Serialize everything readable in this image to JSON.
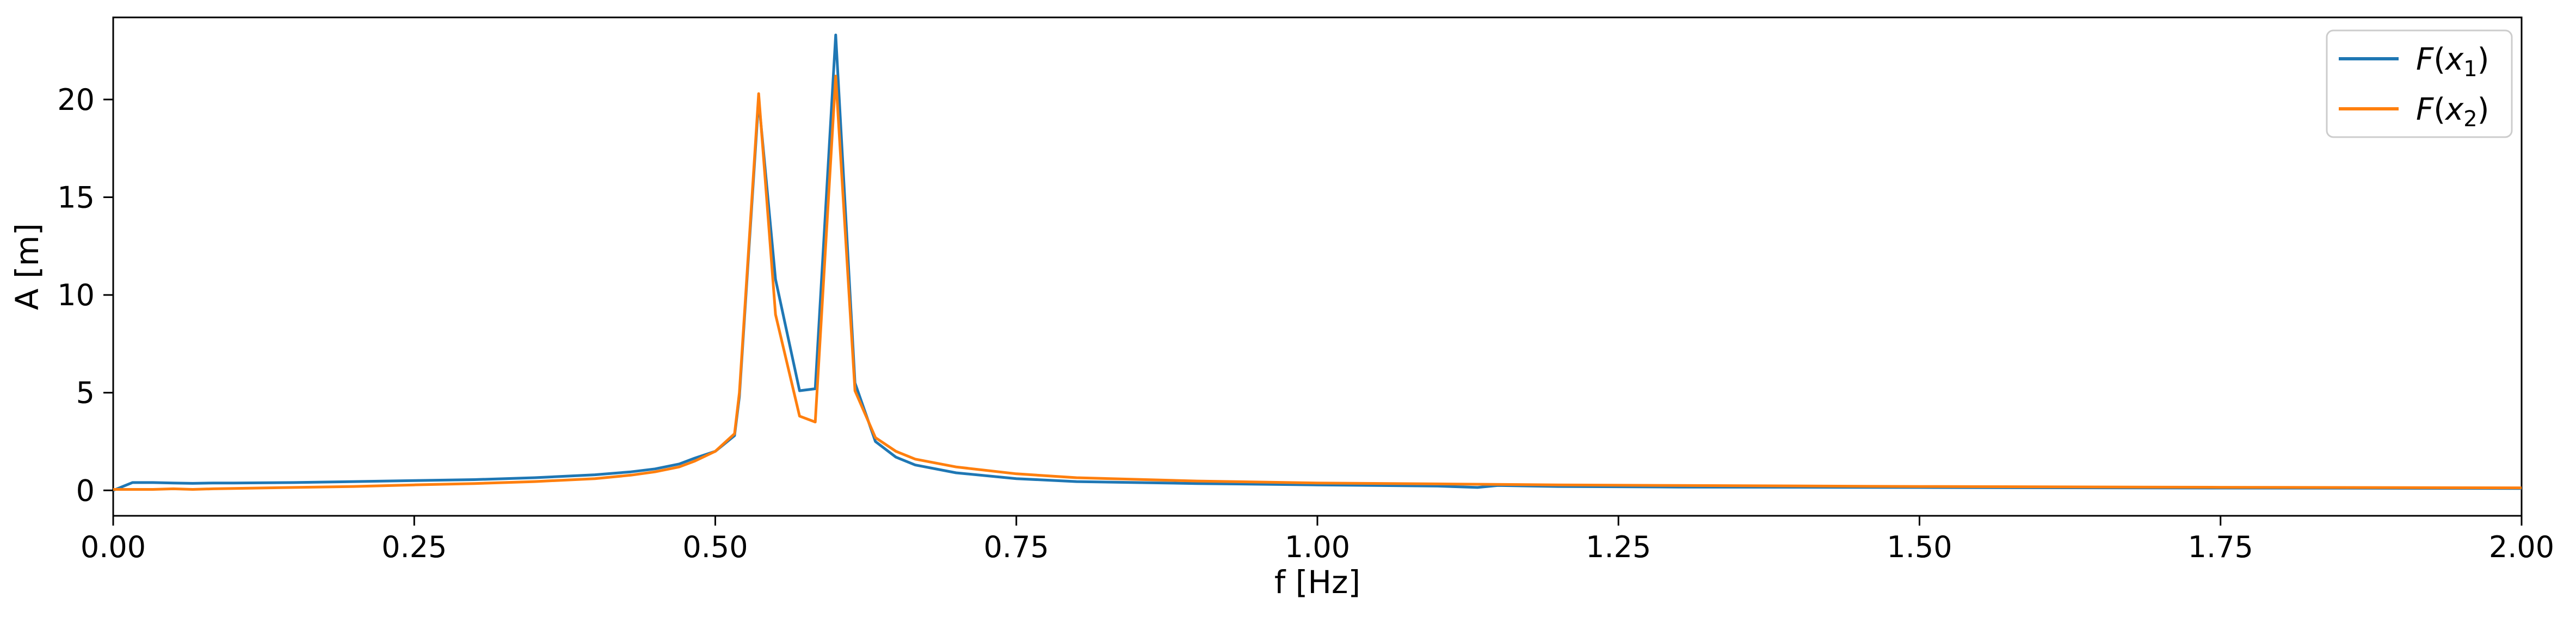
{
  "chart_data": {
    "type": "line",
    "title": "",
    "xlabel": "f [Hz]",
    "ylabel": "A [m]",
    "xlim": [
      0,
      2.0
    ],
    "ylim": [
      -1.3,
      24.2
    ],
    "xticks": [
      0.0,
      0.25,
      0.5,
      0.75,
      1.0,
      1.25,
      1.5,
      1.75,
      2.0
    ],
    "xtick_labels": [
      "0.00",
      "0.25",
      "0.50",
      "0.75",
      "1.00",
      "1.25",
      "1.50",
      "1.75",
      "2.00"
    ],
    "yticks": [
      0,
      5,
      10,
      15,
      20
    ],
    "ytick_labels": [
      "0",
      "5",
      "10",
      "15",
      "20"
    ],
    "grid": false,
    "legend_position": "top-right",
    "series": [
      {
        "name": "F(x1)",
        "color": "#1f77b4",
        "x": [
          0.0,
          0.016,
          0.033,
          0.05,
          0.066,
          0.083,
          0.1,
          0.15,
          0.2,
          0.25,
          0.3,
          0.35,
          0.4,
          0.43,
          0.45,
          0.47,
          0.483,
          0.5,
          0.516,
          0.52,
          0.536,
          0.55,
          0.57,
          0.583,
          0.6,
          0.616,
          0.633,
          0.65,
          0.666,
          0.7,
          0.75,
          0.8,
          0.9,
          1.0,
          1.1,
          1.133,
          1.15,
          1.2,
          1.3,
          1.5,
          1.75,
          2.0
        ],
        "y": [
          0.0,
          0.4,
          0.4,
          0.38,
          0.36,
          0.38,
          0.38,
          0.4,
          0.45,
          0.5,
          0.55,
          0.65,
          0.8,
          0.95,
          1.1,
          1.35,
          1.65,
          2.0,
          2.8,
          4.8,
          20.0,
          10.8,
          5.1,
          5.2,
          23.3,
          5.5,
          2.5,
          1.7,
          1.3,
          0.9,
          0.6,
          0.45,
          0.35,
          0.28,
          0.22,
          0.15,
          0.25,
          0.2,
          0.17,
          0.15,
          0.12,
          0.1
        ],
        "line_width": 5
      },
      {
        "name": "F(x2)",
        "color": "#ff7f0e",
        "x": [
          0.0,
          0.016,
          0.033,
          0.05,
          0.066,
          0.083,
          0.1,
          0.15,
          0.2,
          0.25,
          0.3,
          0.35,
          0.4,
          0.43,
          0.45,
          0.47,
          0.483,
          0.5,
          0.516,
          0.52,
          0.536,
          0.55,
          0.57,
          0.583,
          0.6,
          0.616,
          0.633,
          0.65,
          0.666,
          0.7,
          0.75,
          0.8,
          0.9,
          1.0,
          1.1,
          1.2,
          1.3,
          1.5,
          1.75,
          2.0
        ],
        "y": [
          0.05,
          0.05,
          0.05,
          0.08,
          0.05,
          0.08,
          0.1,
          0.15,
          0.2,
          0.28,
          0.35,
          0.45,
          0.6,
          0.78,
          0.95,
          1.2,
          1.5,
          2.0,
          2.9,
          5.0,
          20.3,
          9.0,
          3.8,
          3.5,
          21.2,
          5.1,
          2.7,
          2.0,
          1.6,
          1.2,
          0.85,
          0.65,
          0.48,
          0.38,
          0.33,
          0.28,
          0.25,
          0.2,
          0.16,
          0.13
        ],
        "line_width": 5
      }
    ],
    "legend": [
      {
        "symbol": "F",
        "subscript": "1",
        "text": "F(x1)"
      },
      {
        "symbol": "F",
        "subscript": "2",
        "text": "F(x2)"
      }
    ]
  }
}
